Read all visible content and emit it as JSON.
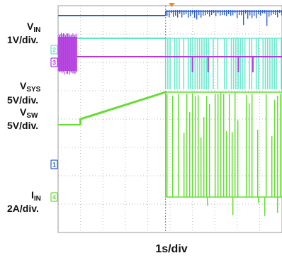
{
  "chart_data": {
    "type": "line",
    "title": "",
    "x_scale_label": "1s/div",
    "x_divisions": 10,
    "y_divisions": 8,
    "grid": true,
    "trigger_division": 4.8,
    "channels": [
      {
        "id": "1",
        "name_main": "V",
        "name_sub": "IN",
        "scale": "1V/div.",
        "color": "#2f5fd0",
        "marker_label": "1",
        "marker_division_from_top": 5.6,
        "segments": [
          {
            "x_start_div": 0.0,
            "x_end_div": 4.8,
            "level_div_from_top": 0.35,
            "activity": "flat"
          },
          {
            "x_start_div": 4.8,
            "x_end_div": 10.0,
            "level_div_from_top": 0.2,
            "activity": "spikes_down"
          }
        ]
      },
      {
        "id": "2",
        "name_main": "V",
        "name_sub": "SYS",
        "scale": "5V/div.",
        "color": "#5ee6c9",
        "marker_label": "2",
        "marker_division_from_top": 1.55,
        "segments": [
          {
            "x_start_div": 0.0,
            "x_end_div": 4.8,
            "level_div_from_top": 1.15,
            "activity": "flat"
          },
          {
            "x_start_div": 4.8,
            "x_end_div": 10.0,
            "level_div_from_top": 1.15,
            "activity": "switching"
          }
        ]
      },
      {
        "id": "3",
        "name_main": "V",
        "name_sub": "SW",
        "scale": "5V/div.",
        "color": "#b23be0",
        "marker_label": "3",
        "marker_division_from_top": 2.0,
        "segments": [
          {
            "x_start_div": 0.0,
            "x_end_div": 0.85,
            "level_div_from_top": 1.8,
            "activity": "burst"
          },
          {
            "x_start_div": 0.85,
            "x_end_div": 10.0,
            "level_div_from_top": 1.8,
            "activity": "flat_with_dips"
          }
        ]
      },
      {
        "id": "4",
        "name_main": "I",
        "name_sub": "IN",
        "scale": "2A/div.",
        "color": "#66dd33",
        "marker_label": "4",
        "marker_division_from_top": 6.75,
        "segments": [
          {
            "x_start_div": 0.0,
            "x_end_div": 1.0,
            "level_div_from_top": 4.2,
            "activity": "flat"
          },
          {
            "x_start_div": 1.0,
            "x_end_div": 4.8,
            "start_div_from_top": 4.0,
            "end_div_from_top": 3.05,
            "activity": "ramp"
          },
          {
            "x_start_div": 4.8,
            "x_end_div": 10.0,
            "level_div_from_top": 6.75,
            "activity": "pulses_up"
          }
        ]
      }
    ]
  }
}
